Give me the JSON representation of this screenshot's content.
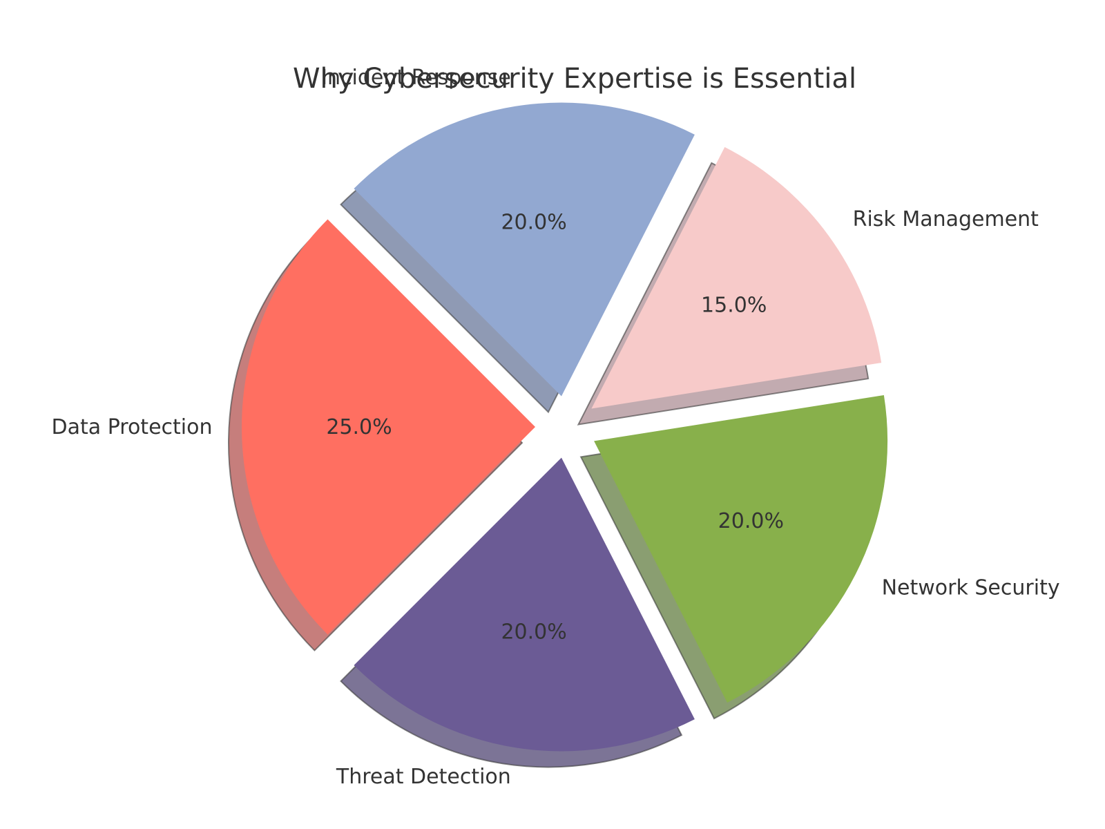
{
  "chart_data": {
    "type": "pie",
    "title": "Why Cybersecurity Expertise is Essential",
    "slices": [
      {
        "label": "Data Protection",
        "value": 25.0,
        "pct_label": "25.0%",
        "color": "#ff6f61"
      },
      {
        "label": "Threat Detection",
        "value": 20.0,
        "pct_label": "20.0%",
        "color": "#6b5b95"
      },
      {
        "label": "Network Security",
        "value": 20.0,
        "pct_label": "20.0%",
        "color": "#88b04b"
      },
      {
        "label": "Risk Management",
        "value": 15.0,
        "pct_label": "15.0%",
        "color": "#f7cac9"
      },
      {
        "label": "Incident Response",
        "value": 20.0,
        "pct_label": "20.0%",
        "color": "#92a8d1"
      }
    ],
    "exploded": true,
    "shadow": true
  }
}
